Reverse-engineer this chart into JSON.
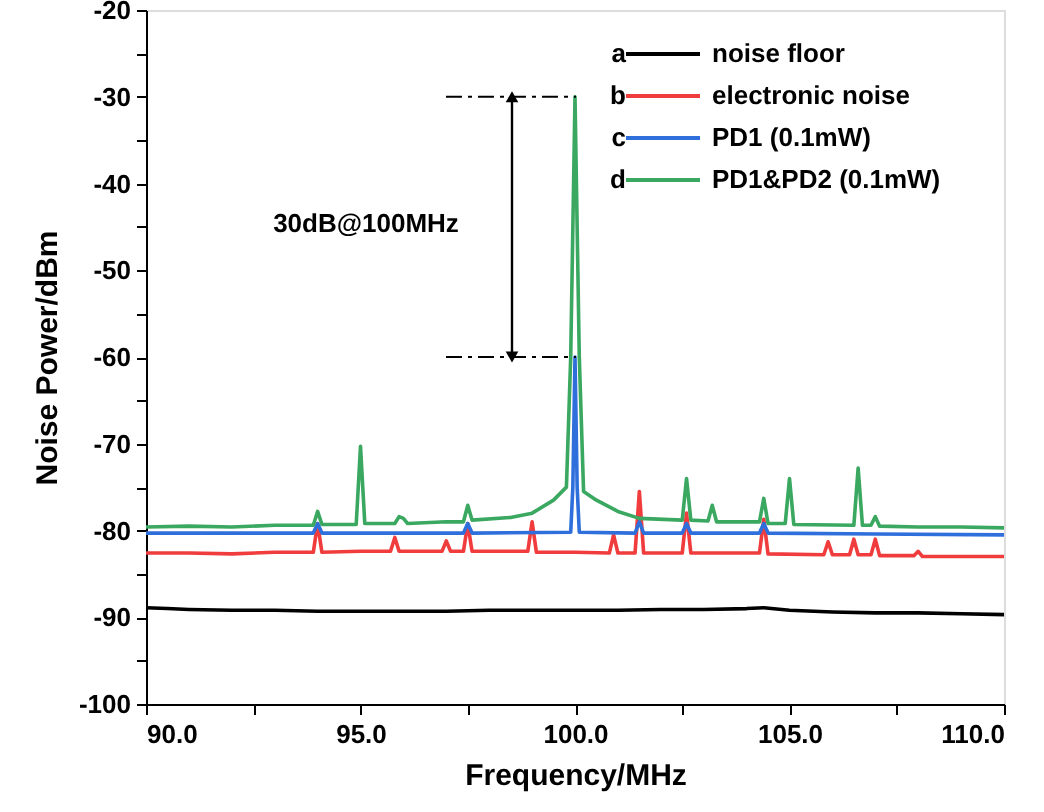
{
  "chart_data": {
    "type": "line",
    "xlabel": "Frequency/MHz",
    "ylabel": "Noise Power/dBm",
    "annotations": [
      "30dB@100MHz",
      "a",
      "b",
      "c",
      "d"
    ],
    "xlim": [
      90,
      110
    ],
    "ylim": [
      -100,
      -20
    ],
    "xticks": [
      {
        "value": 90,
        "label": "90.0"
      },
      {
        "value": 92.5,
        "label": null
      },
      {
        "value": 95,
        "label": "95.0"
      },
      {
        "value": 97.5,
        "label": null
      },
      {
        "value": 100,
        "label": "100.0"
      },
      {
        "value": 102.5,
        "label": null
      },
      {
        "value": 105,
        "label": "105.0"
      },
      {
        "value": 107.5,
        "label": null
      },
      {
        "value": 110,
        "label": "110.0"
      }
    ],
    "yticks": [
      -100,
      {
        "value": -95,
        "label": null
      },
      -90,
      {
        "value": -85,
        "label": null
      },
      -80,
      {
        "value": -75,
        "label": null
      },
      -70,
      {
        "value": -65,
        "label": null
      },
      -60,
      {
        "value": -55,
        "label": null
      },
      -50,
      {
        "value": -45,
        "label": null
      },
      -40,
      {
        "value": -35,
        "label": null
      },
      -30,
      {
        "value": -25,
        "label": null
      },
      -20
    ],
    "ref_lines": [
      {
        "axis": "y",
        "value": -30,
        "color": "#000000",
        "line_style": "dashed"
      },
      {
        "axis": "y",
        "value": -60,
        "color": "#000000",
        "line_style": "dashed"
      }
    ],
    "grid": false,
    "legend": "top right",
    "marker": "none",
    "line_style": "solid",
    "series": [
      {
        "name": "noise floor",
        "color": "#000000",
        "x": [
          90,
          90.5,
          91,
          92,
          93,
          94,
          95,
          96,
          97,
          98,
          99,
          100,
          101,
          102,
          103,
          104,
          104.4,
          105,
          106,
          107,
          108,
          109,
          110
        ],
        "values": [
          -88.9,
          -89.0,
          -89.1,
          -89.2,
          -89.2,
          -89.3,
          -89.3,
          -89.3,
          -89.3,
          -89.2,
          -89.2,
          -89.2,
          -89.2,
          -89.1,
          -89.1,
          -89.0,
          -88.9,
          -89.2,
          -89.4,
          -89.5,
          -89.5,
          -89.6,
          -89.7
        ]
      },
      {
        "name": "electronic noise",
        "color": "#f03c3c",
        "x": [
          90,
          91,
          92,
          93,
          93.9,
          94.0,
          94.1,
          95,
          95.7,
          95.8,
          95.9,
          96.9,
          97.0,
          97.1,
          97.4,
          97.5,
          97.6,
          98.9,
          99.0,
          99.1,
          100,
          100.8,
          100.9,
          101.0,
          101.4,
          101.5,
          101.6,
          102.5,
          102.6,
          102.7,
          104.3,
          104.4,
          104.5,
          105.8,
          105.9,
          106.0,
          106.4,
          106.5,
          106.6,
          106.9,
          107.0,
          107.1,
          107.9,
          108.0,
          108.1,
          109,
          110
        ],
        "values": [
          -82.6,
          -82.6,
          -82.7,
          -82.5,
          -82.5,
          -79.2,
          -82.5,
          -82.4,
          -82.4,
          -80.8,
          -82.4,
          -82.4,
          -81.2,
          -82.4,
          -82.4,
          -79.2,
          -82.4,
          -82.4,
          -79.0,
          -82.5,
          -82.5,
          -82.6,
          -80.5,
          -82.6,
          -82.6,
          -75.5,
          -82.6,
          -82.6,
          -78.0,
          -82.6,
          -82.6,
          -78.7,
          -82.7,
          -82.8,
          -81.3,
          -82.8,
          -82.8,
          -81.0,
          -82.8,
          -82.8,
          -81.0,
          -82.9,
          -82.9,
          -82.4,
          -83.0,
          -83.0,
          -83.0
        ]
      },
      {
        "name": "PD1 (0.1mW)",
        "color": "#2f6fdc",
        "x": [
          90,
          92,
          93.9,
          94.0,
          94.1,
          97.4,
          97.5,
          97.6,
          99.9,
          99.95,
          100.0,
          100.05,
          100.1,
          101.4,
          101.5,
          101.6,
          102.5,
          102.6,
          102.7,
          104.3,
          104.4,
          104.5,
          107,
          110
        ],
        "values": [
          -80.3,
          -80.3,
          -80.3,
          -79.2,
          -80.3,
          -80.3,
          -79.2,
          -80.3,
          -80.2,
          -75.0,
          -60.0,
          -75.0,
          -80.2,
          -80.3,
          -79.0,
          -80.3,
          -80.3,
          -79.2,
          -80.3,
          -80.3,
          -79.2,
          -80.3,
          -80.4,
          -80.5
        ]
      },
      {
        "name": "PD1&PD2 (0.1mW)",
        "color": "#3aa860",
        "x": [
          90,
          91,
          92,
          93,
          93.9,
          94.0,
          94.1,
          94.9,
          95.0,
          95.1,
          95.8,
          95.9,
          96.0,
          96.1,
          97.0,
          97.4,
          97.5,
          97.6,
          98.5,
          99.0,
          99.5,
          99.8,
          99.9,
          100.0,
          100.1,
          100.2,
          100.5,
          101.0,
          101.5,
          102.5,
          102.6,
          102.7,
          103.1,
          103.2,
          103.3,
          104.3,
          104.4,
          104.5,
          104.9,
          105.0,
          105.1,
          106.5,
          106.6,
          106.7,
          106.9,
          107.0,
          107.1,
          108,
          109,
          110
        ],
        "values": [
          -79.6,
          -79.5,
          -79.6,
          -79.4,
          -79.4,
          -77.8,
          -79.3,
          -79.3,
          -70.3,
          -79.2,
          -79.2,
          -78.4,
          -78.6,
          -79.2,
          -79.0,
          -79.0,
          -77.1,
          -78.8,
          -78.5,
          -78.0,
          -76.5,
          -75.0,
          -60.0,
          -30.0,
          -60.0,
          -75.5,
          -76.5,
          -77.8,
          -78.6,
          -78.8,
          -74.0,
          -78.8,
          -78.9,
          -77.1,
          -79.0,
          -79.0,
          -76.3,
          -79.2,
          -79.2,
          -74.0,
          -79.3,
          -79.4,
          -72.8,
          -79.4,
          -79.4,
          -78.4,
          -79.5,
          -79.6,
          -79.6,
          -79.7
        ]
      }
    ]
  }
}
